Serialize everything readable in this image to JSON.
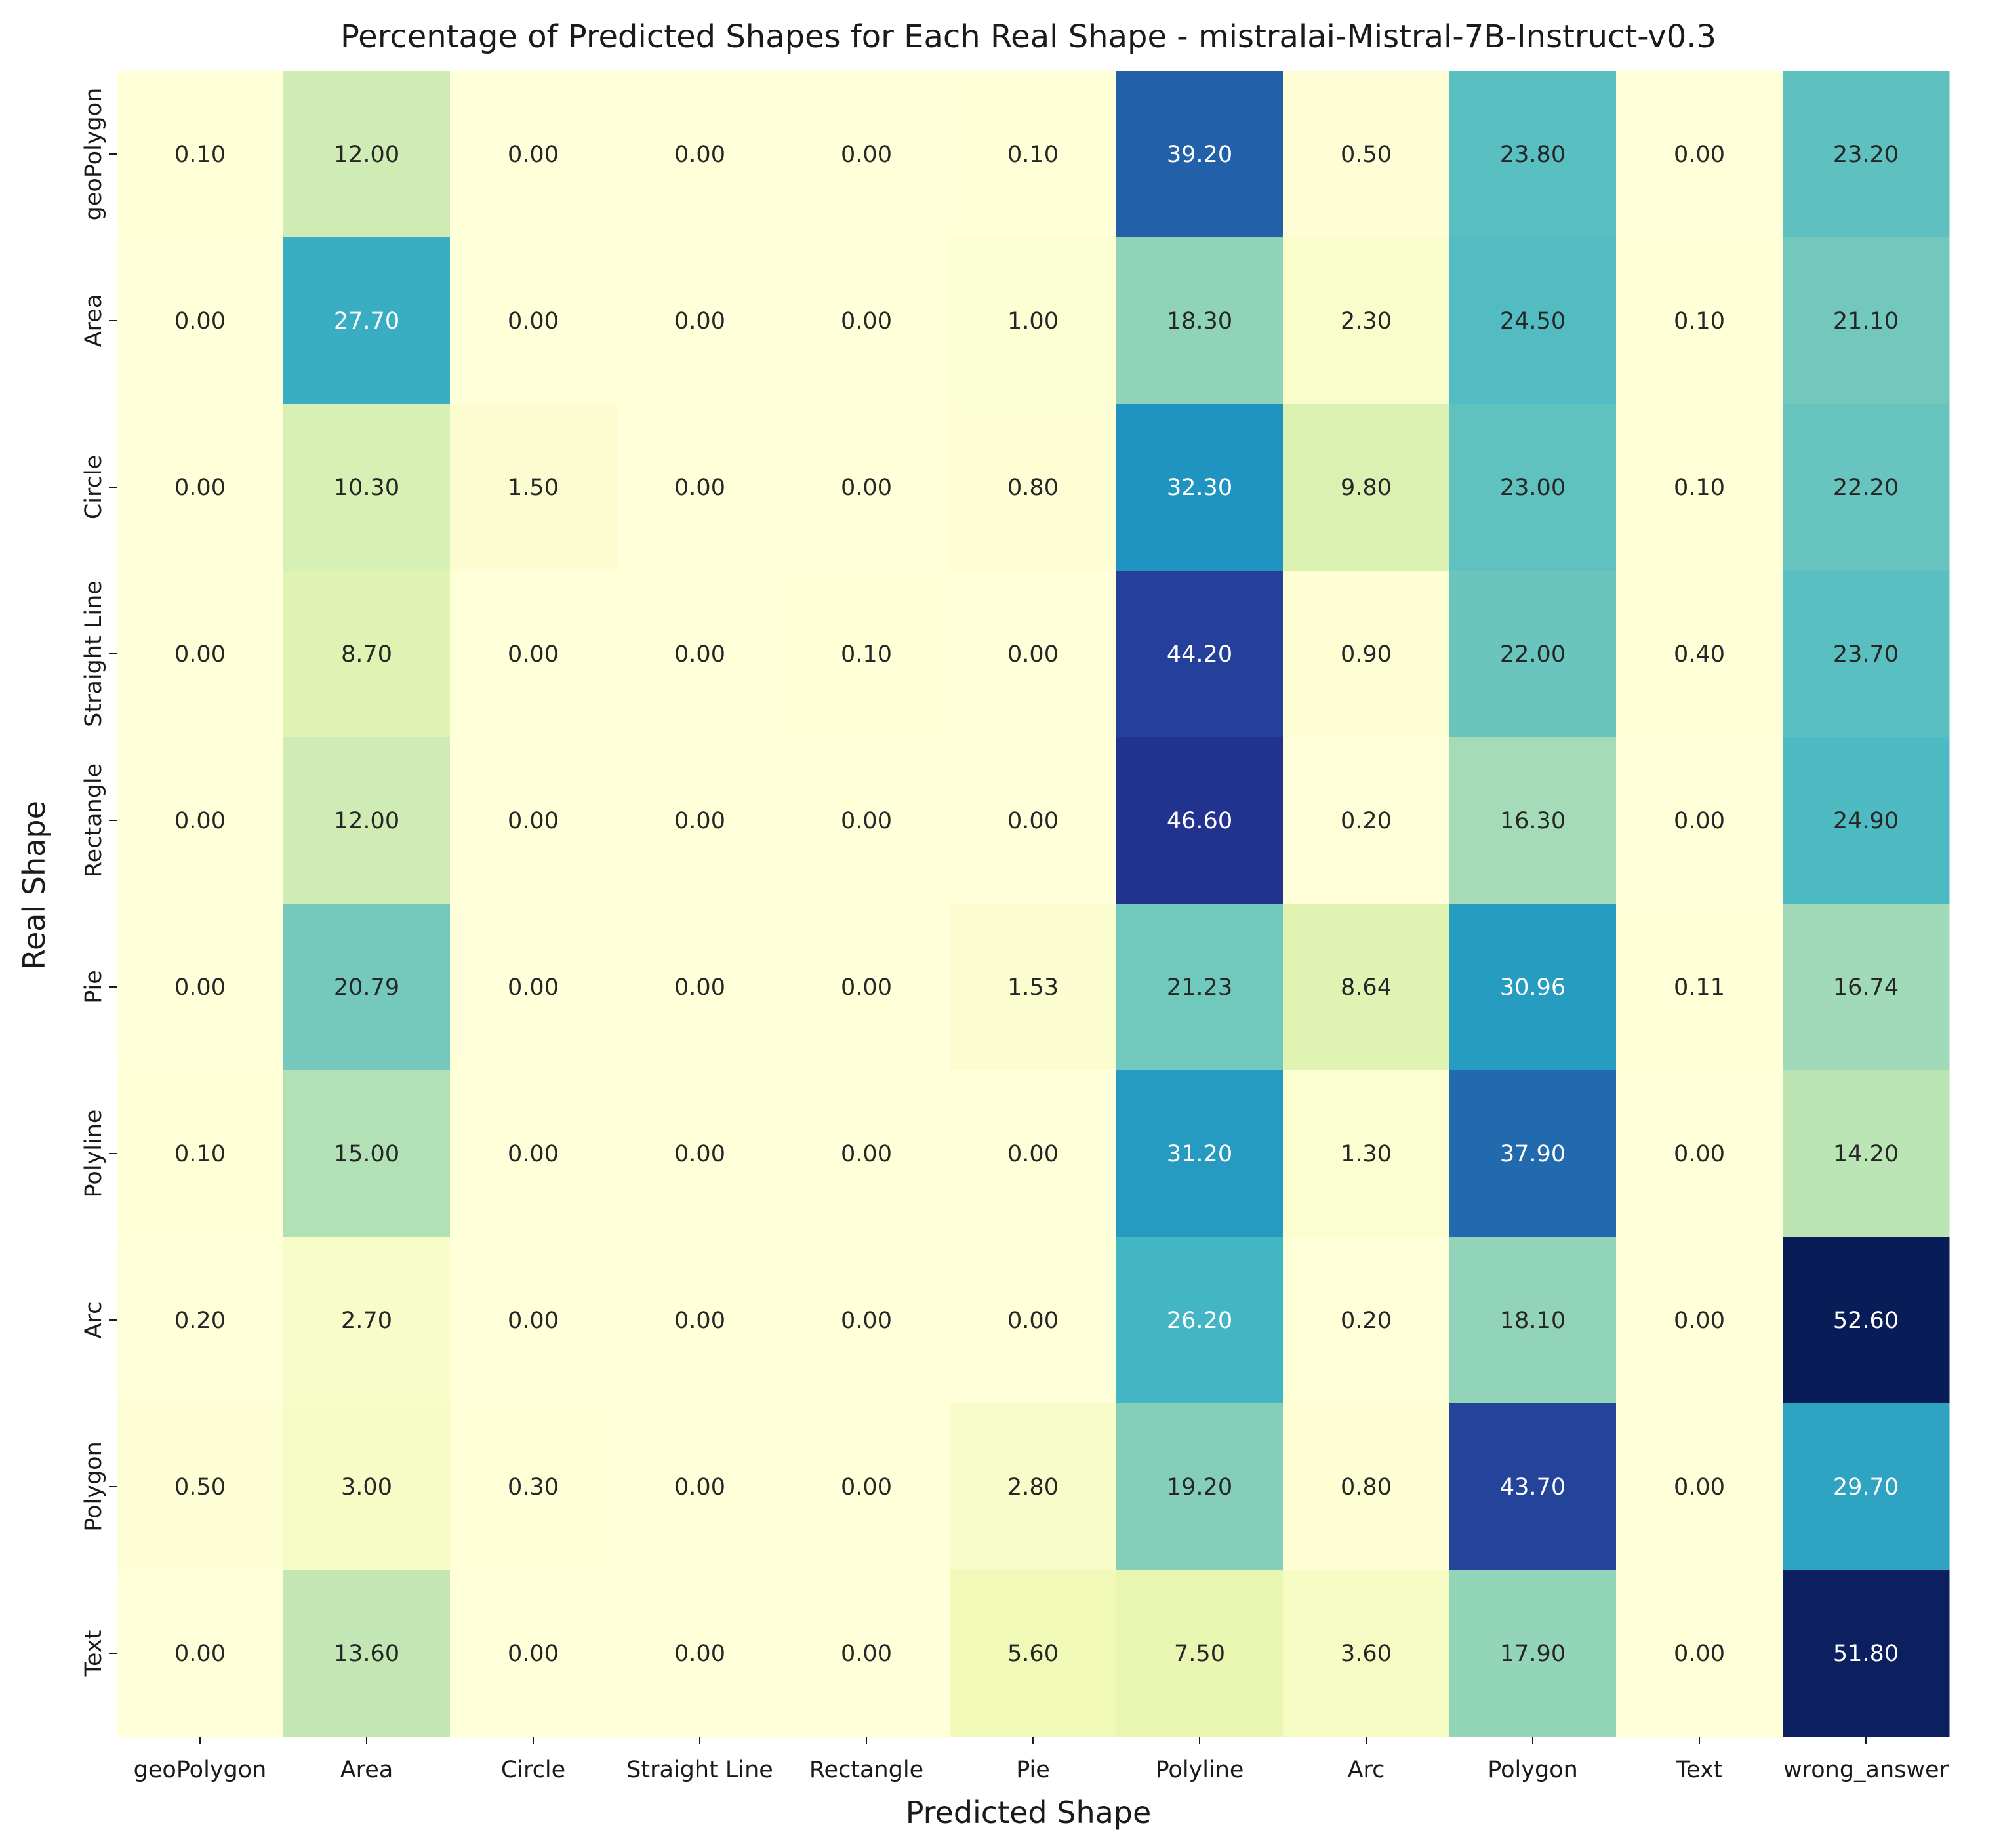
{
  "chart_data": {
    "type": "heatmap",
    "title": "Percentage of Predicted Shapes for Each Real Shape - mistralai-Mistral-7B-Instruct-v0.3",
    "xlabel": "Predicted Shape",
    "ylabel": "Real Shape",
    "colormap": "YlGnBu",
    "value_range": [
      0,
      52.6
    ],
    "x_categories": [
      "geoPolygon",
      "Area",
      "Circle",
      "Straight Line",
      "Rectangle",
      "Pie",
      "Polyline",
      "Arc",
      "Polygon",
      "Text",
      "wrong_answer"
    ],
    "y_categories": [
      "geoPolygon",
      "Area",
      "Circle",
      "Straight Line",
      "Rectangle",
      "Pie",
      "Polyline",
      "Arc",
      "Polygon",
      "Text"
    ],
    "values": [
      [
        0.1,
        12.0,
        0.0,
        0.0,
        0.0,
        0.1,
        39.2,
        0.5,
        23.8,
        0.0,
        23.2
      ],
      [
        0.0,
        27.7,
        0.0,
        0.0,
        0.0,
        1.0,
        18.3,
        2.3,
        24.5,
        0.1,
        21.1
      ],
      [
        0.0,
        10.3,
        1.5,
        0.0,
        0.0,
        0.8,
        32.3,
        9.8,
        23.0,
        0.1,
        22.2
      ],
      [
        0.0,
        8.7,
        0.0,
        0.0,
        0.1,
        0.0,
        44.2,
        0.9,
        22.0,
        0.4,
        23.7
      ],
      [
        0.0,
        12.0,
        0.0,
        0.0,
        0.0,
        0.0,
        46.6,
        0.2,
        16.3,
        0.0,
        24.9
      ],
      [
        0.0,
        20.79,
        0.0,
        0.0,
        0.0,
        1.53,
        21.23,
        8.64,
        30.96,
        0.11,
        16.74
      ],
      [
        0.1,
        15.0,
        0.0,
        0.0,
        0.0,
        0.0,
        31.2,
        1.3,
        37.9,
        0.0,
        14.2
      ],
      [
        0.2,
        2.7,
        0.0,
        0.0,
        0.0,
        0.0,
        26.2,
        0.2,
        18.1,
        0.0,
        52.6
      ],
      [
        0.5,
        3.0,
        0.3,
        0.0,
        0.0,
        2.8,
        19.2,
        0.8,
        43.7,
        0.0,
        29.7
      ],
      [
        0.0,
        13.6,
        0.0,
        0.0,
        0.0,
        5.6,
        7.5,
        3.6,
        17.9,
        0.0,
        51.8
      ]
    ],
    "cell_label_format": "2 decimals"
  }
}
